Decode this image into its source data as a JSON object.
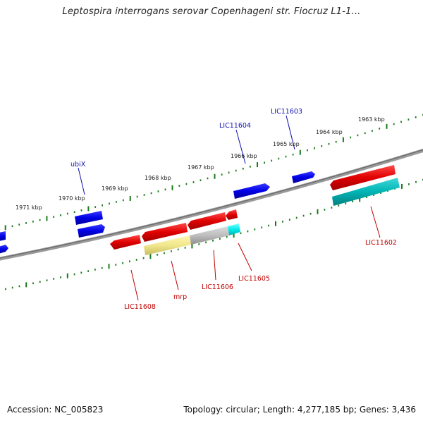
{
  "title": "Leptospira interrogans serovar Copenhageni str. Fiocruz L1-1...",
  "footer": {
    "accession": "Accession: NC_005823",
    "summary": "Topology: circular; Length: 4,277,185 bp; Genes: 3,436"
  },
  "scale_labels": [
    "1971 kbp",
    "1970 kbp",
    "1969 kbp",
    "1968 kbp",
    "1967 kbp",
    "1966 kbp",
    "1965 kbp",
    "1964 kbp",
    "1963 kbp"
  ],
  "gene_labels": {
    "ubiX": "ubiX",
    "LIC11604": "LIC11604",
    "LIC11603": "LIC11603",
    "LIC11602": "LIC11602",
    "LIC11605": "LIC11605",
    "LIC11606": "LIC11606",
    "mrp": "mrp",
    "LIC11608": "LIC11608"
  },
  "colors": {
    "forward_gene": "#0000ee",
    "reverse_gene": "#ee0000",
    "rrna_yellow": "#f0e68c",
    "gray_gene": "#b8b8b8",
    "cyan_gene": "#00e0e0",
    "teal_gene": "#00b0b0",
    "tick_green": "#1a7a1a",
    "backbone": "#888888"
  }
}
